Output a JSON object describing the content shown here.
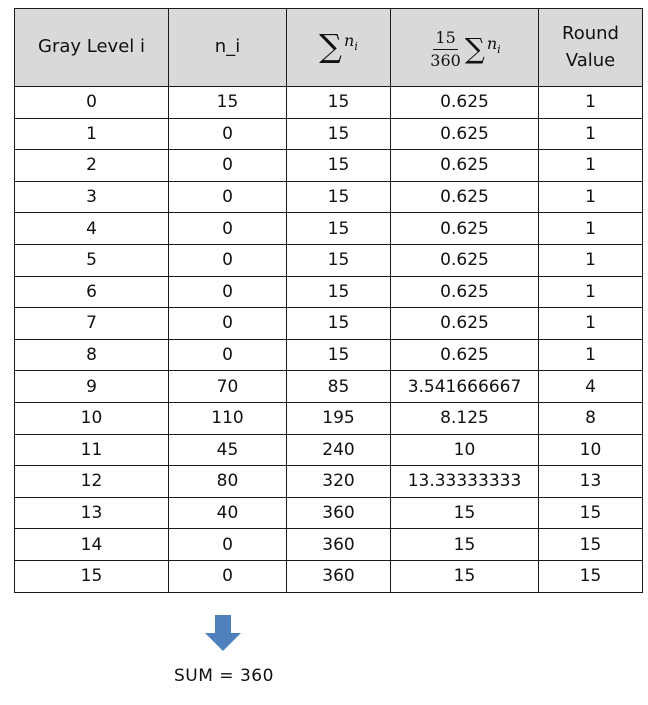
{
  "table": {
    "headers": {
      "gray_level": "Gray Level i",
      "n_i": "n_i",
      "sum_symbol": "∑",
      "sum_var": "n",
      "sum_sub": "i",
      "scaled_num": "15",
      "scaled_den": "360",
      "round_line1": "Round",
      "round_line2": "Value"
    },
    "rows": [
      [
        "0",
        "15",
        "15",
        "0.625",
        "1"
      ],
      [
        "1",
        "0",
        "15",
        "0.625",
        "1"
      ],
      [
        "2",
        "0",
        "15",
        "0.625",
        "1"
      ],
      [
        "3",
        "0",
        "15",
        "0.625",
        "1"
      ],
      [
        "4",
        "0",
        "15",
        "0.625",
        "1"
      ],
      [
        "5",
        "0",
        "15",
        "0.625",
        "1"
      ],
      [
        "6",
        "0",
        "15",
        "0.625",
        "1"
      ],
      [
        "7",
        "0",
        "15",
        "0.625",
        "1"
      ],
      [
        "8",
        "0",
        "15",
        "0.625",
        "1"
      ],
      [
        "9",
        "70",
        "85",
        "3.541666667",
        "4"
      ],
      [
        "10",
        "110",
        "195",
        "8.125",
        "8"
      ],
      [
        "11",
        "45",
        "240",
        "10",
        "10"
      ],
      [
        "12",
        "80",
        "320",
        "13.33333333",
        "13"
      ],
      [
        "13",
        "40",
        "360",
        "15",
        "15"
      ],
      [
        "14",
        "0",
        "360",
        "15",
        "15"
      ],
      [
        "15",
        "0",
        "360",
        "15",
        "15"
      ]
    ]
  },
  "arrow_icon": "arrow-down-icon",
  "arrow_color": "#4f81bd",
  "sum_text": "SUM = 360"
}
